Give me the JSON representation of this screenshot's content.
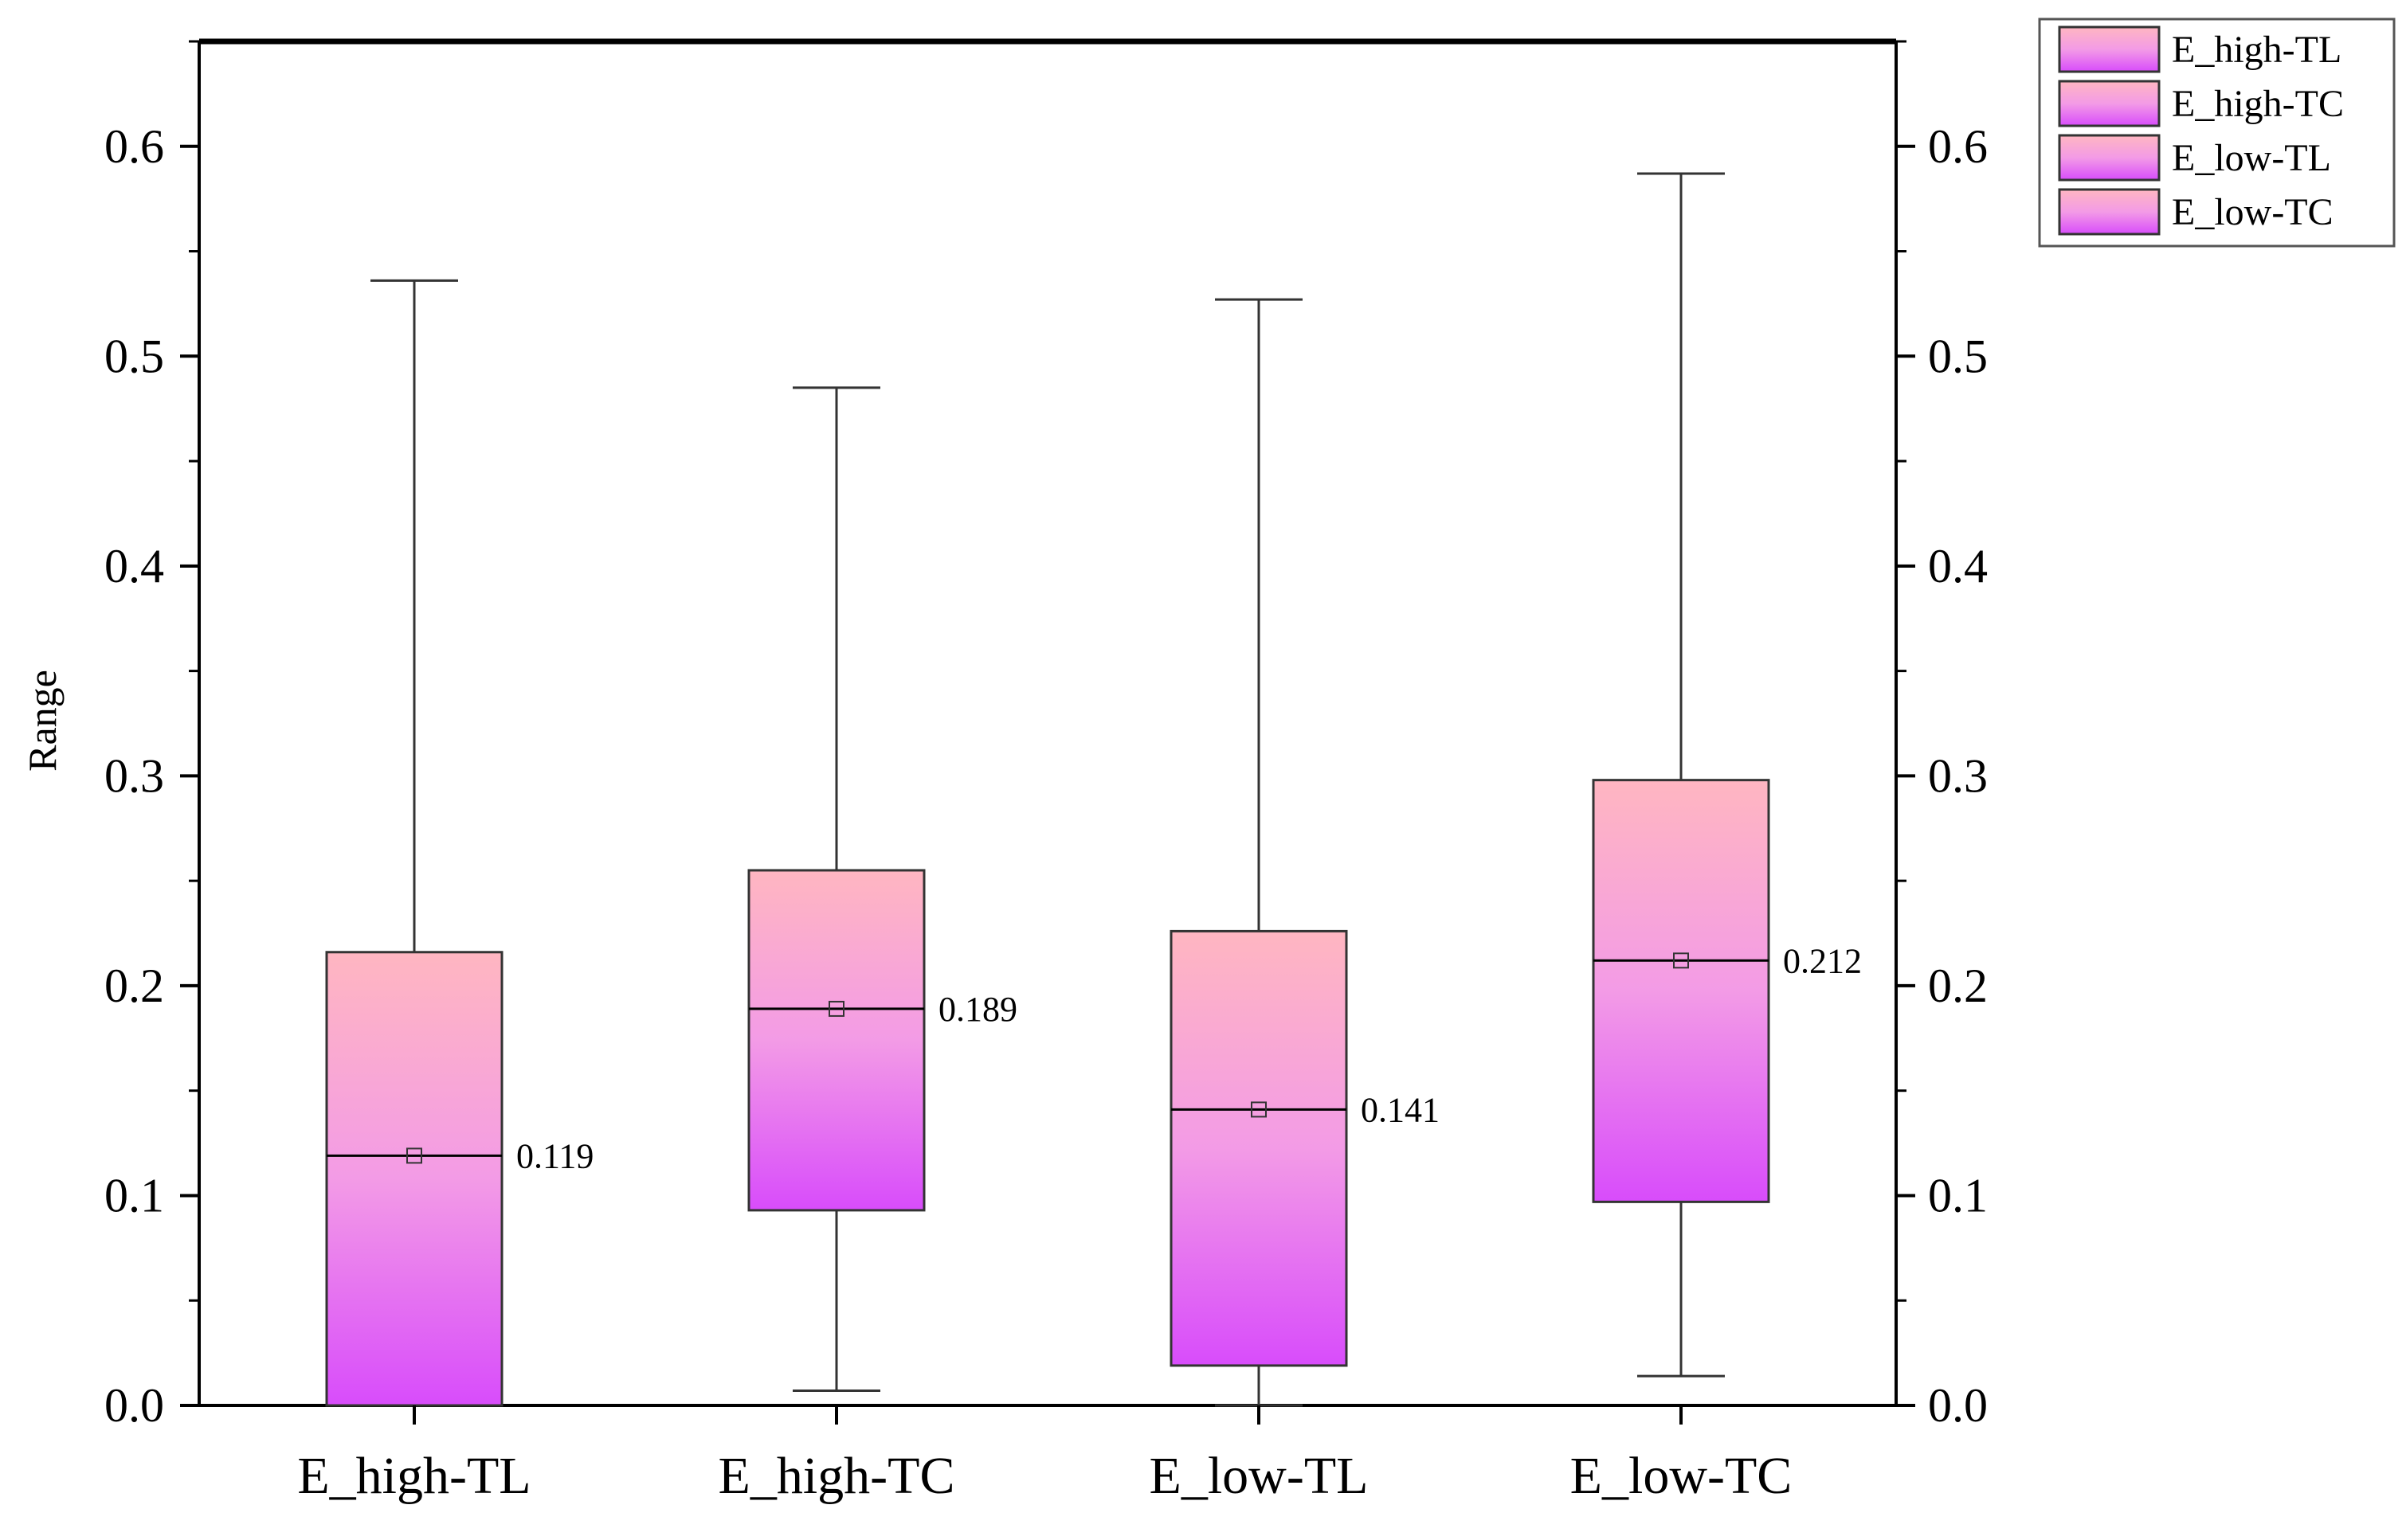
{
  "chart_data": {
    "type": "box",
    "ylabel": "Range",
    "ylim": [
      0,
      0.65
    ],
    "yticks": [
      "0.0",
      "0.1",
      "0.2",
      "0.3",
      "0.4",
      "0.5",
      "0.6"
    ],
    "categories": [
      "E_high-TL",
      "E_high-TC",
      "E_low-TL",
      "E_low-TC"
    ],
    "boxes": [
      {
        "name": "E_high-TL",
        "min": 0.0,
        "q1": 0.0,
        "median": 0.119,
        "q3": 0.216,
        "max": 0.536,
        "mean": 0.119,
        "median_label": "0.119"
      },
      {
        "name": "E_high-TC",
        "min": 0.007,
        "q1": 0.093,
        "median": 0.189,
        "q3": 0.255,
        "max": 0.485,
        "mean": 0.189,
        "median_label": "0.189"
      },
      {
        "name": "E_low-TL",
        "min": 0.0,
        "q1": 0.019,
        "median": 0.141,
        "q3": 0.226,
        "max": 0.527,
        "mean": 0.141,
        "median_label": "0.141"
      },
      {
        "name": "E_low-TC",
        "min": 0.014,
        "q1": 0.097,
        "median": 0.212,
        "q3": 0.298,
        "max": 0.587,
        "mean": 0.212,
        "median_label": "0.212"
      }
    ],
    "legend": {
      "position": "top-right-outside",
      "entries": [
        "E_high-TL",
        "E_high-TC",
        "E_low-TL",
        "E_low-TC"
      ]
    },
    "colors": {
      "gradient_top": "#ffb6c1",
      "gradient_mid": "#f39be6",
      "gradient_bottom": "#d84cfb",
      "stroke": "#333333",
      "axis": "#000000"
    },
    "grid": false
  }
}
